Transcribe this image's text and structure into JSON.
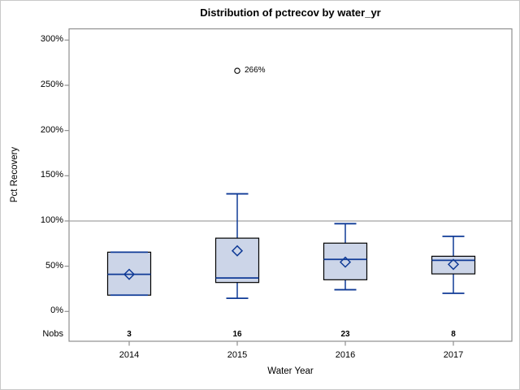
{
  "chart_data": {
    "type": "boxplot",
    "title": "Distribution of pctrecov by water_yr",
    "xlabel": "Water Year",
    "ylabel": "Pct Recovery",
    "categories": [
      "2014",
      "2015",
      "2016",
      "2017"
    ],
    "nobs_label": "Nobs",
    "nobs": [
      "3",
      "16",
      "23",
      "8"
    ],
    "y_axis": {
      "unit": "%",
      "min": 0,
      "max": 300,
      "tick_step": 50,
      "ticks": [
        {
          "value": 0,
          "label": "0%"
        },
        {
          "value": 50,
          "label": "50%"
        },
        {
          "value": 100,
          "label": "100%"
        },
        {
          "value": 150,
          "label": "150%"
        },
        {
          "value": 200,
          "label": "200%"
        },
        {
          "value": 250,
          "label": "250%"
        },
        {
          "value": 300,
          "label": "300%"
        }
      ]
    },
    "reference_line_value": 100,
    "series": [
      {
        "category": "2014",
        "nobs": "3",
        "low": 18,
        "q1": 18,
        "median": 41,
        "q3": 65.5,
        "high": 65.5,
        "mean": 41,
        "outliers": []
      },
      {
        "category": "2015",
        "nobs": "16",
        "low": 14.5,
        "q1": 32,
        "median": 37,
        "q3": 81,
        "high": 130,
        "mean": 67,
        "outliers": [
          {
            "value": 266,
            "label": "266%"
          }
        ]
      },
      {
        "category": "2016",
        "nobs": "23",
        "low": 24,
        "q1": 35,
        "median": 57.5,
        "q3": 75.5,
        "high": 97,
        "mean": 54.5,
        "outliers": []
      },
      {
        "category": "2017",
        "nobs": "8",
        "low": 20,
        "q1": 41.5,
        "median": 56.5,
        "q3": 61,
        "high": 83,
        "mean": 52,
        "outliers": []
      }
    ],
    "colors": {
      "box_fill": "#ccd5e8",
      "box_border": "#000000",
      "whisker": "#0f3a96",
      "reference_line": "#a3a3a3",
      "frame": "#8f8f8f",
      "text": "#000000"
    },
    "layout_hints": {
      "grid": false,
      "legend": false,
      "legend_position": "none"
    }
  }
}
